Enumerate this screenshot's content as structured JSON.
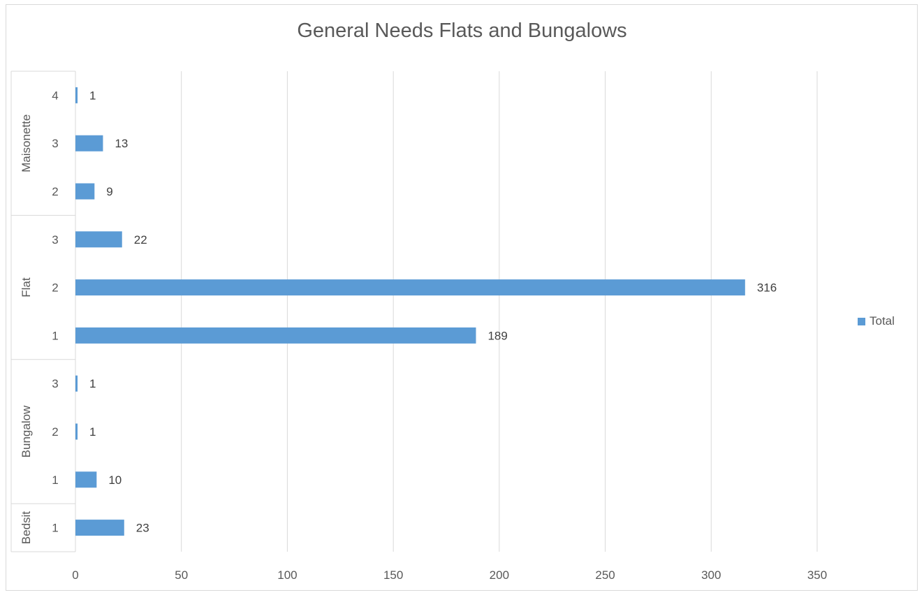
{
  "chart_data": {
    "type": "bar",
    "orientation": "horizontal",
    "title": "General Needs Flats and Bungalows",
    "xlim": [
      0,
      350
    ],
    "x_ticks": [
      "0",
      "50",
      "100",
      "150",
      "200",
      "250",
      "300",
      "350"
    ],
    "grid": true,
    "legend_position": "right",
    "bar_color": "#5b9bd5",
    "groups": [
      {
        "name": "Maisonette",
        "categories": [
          "4",
          "3",
          "2"
        ]
      },
      {
        "name": "Flat",
        "categories": [
          "3",
          "2",
          "1"
        ]
      },
      {
        "name": "Bungalow",
        "categories": [
          "3",
          "2",
          "1"
        ]
      },
      {
        "name": "Bedsit",
        "categories": [
          "1"
        ]
      }
    ],
    "series": [
      {
        "name": "Total",
        "values": [
          1,
          13,
          9,
          22,
          316,
          189,
          1,
          1,
          10,
          23
        ]
      }
    ]
  }
}
